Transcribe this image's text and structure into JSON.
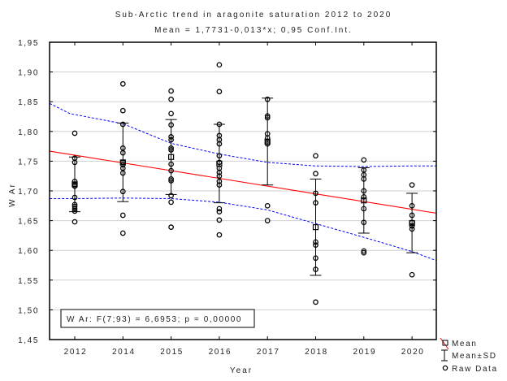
{
  "chart_data": {
    "type": "scatter",
    "title": "Sub-Arctic trend in aragonite saturation 2012 to 2020",
    "subtitle": "Mean = 1,7731-0,013*x; 0,95 Conf.Int.",
    "xlabel": "Year",
    "ylabel": "W Ar",
    "categories": [
      "2012",
      "2014",
      "2015",
      "2016",
      "2017",
      "2018",
      "2019",
      "2020"
    ],
    "ylim": [
      1.45,
      1.95
    ],
    "yticks": [
      "1,45",
      "1,50",
      "1,55",
      "1,60",
      "1,65",
      "1,70",
      "1,75",
      "1,80",
      "1,85",
      "1,90",
      "1,95"
    ],
    "grid": true,
    "annotation": "W Ar:  F(7;93) = 6,6953; p = 0,00000",
    "regression": {
      "intercept": 1.7731,
      "slope": -0.013,
      "color": "#ff0000"
    },
    "confidence_band": {
      "level": 0.95,
      "color": "#0000ff",
      "upper": [
        1.847,
        1.83,
        1.813,
        1.78,
        1.762,
        1.748,
        1.742,
        1.741,
        1.742,
        1.742
      ],
      "lower": [
        1.687,
        1.687,
        1.688,
        1.687,
        1.681,
        1.668,
        1.645,
        1.622,
        1.598,
        1.583
      ]
    },
    "mean": [
      1.711,
      1.748,
      1.757,
      1.746,
      1.783,
      1.639,
      1.684,
      1.646
    ],
    "sd": [
      0.046,
      0.066,
      0.063,
      0.066,
      0.073,
      0.081,
      0.055,
      0.05
    ],
    "raw_data": [
      [
        1.797,
        1.755,
        1.748,
        1.716,
        1.711,
        1.708,
        1.689,
        1.677,
        1.674,
        1.67,
        1.666,
        1.648
      ],
      [
        1.88,
        1.835,
        1.812,
        1.772,
        1.764,
        1.748,
        1.744,
        1.738,
        1.73,
        1.699,
        1.659,
        1.629
      ],
      [
        1.868,
        1.854,
        1.83,
        1.811,
        1.791,
        1.786,
        1.772,
        1.769,
        1.745,
        1.734,
        1.72,
        1.717,
        1.692,
        1.681,
        1.639
      ],
      [
        1.912,
        1.867,
        1.812,
        1.793,
        1.786,
        1.779,
        1.759,
        1.748,
        1.738,
        1.731,
        1.725,
        1.716,
        1.71,
        1.67,
        1.665,
        1.651,
        1.626
      ],
      [
        1.854,
        1.826,
        1.823,
        1.796,
        1.789,
        1.782,
        1.779,
        1.675,
        1.65
      ],
      [
        1.759,
        1.729,
        1.696,
        1.68,
        1.614,
        1.609,
        1.587,
        1.568,
        1.513
      ],
      [
        1.752,
        1.735,
        1.727,
        1.72,
        1.7,
        1.69,
        1.67,
        1.647,
        1.599,
        1.596
      ],
      [
        1.71,
        1.675,
        1.659,
        1.647,
        1.641,
        1.636,
        1.559
      ]
    ],
    "legend": {
      "placement": "bottom-right",
      "entries": [
        "Mean",
        "Mean±SD",
        "Raw Data"
      ]
    }
  }
}
